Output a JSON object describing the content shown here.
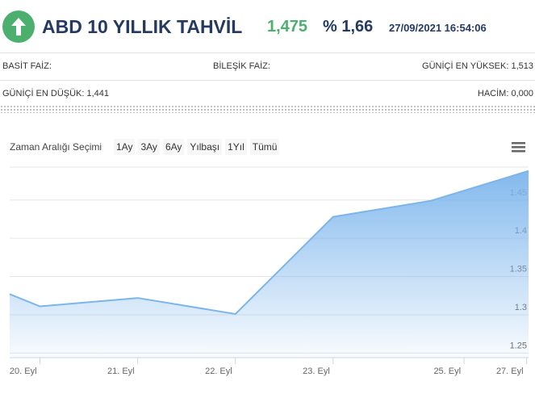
{
  "header": {
    "title": "ABD 10 YILLIK TAHVİL",
    "price": "1,475",
    "change": "% 1,66",
    "datetime": "27/09/2021 16:54:06"
  },
  "info": {
    "simple_rate": "BASİT FAİZ:",
    "compound_rate": "BİLEŞİK FAİZ:",
    "day_high": "GÜNİÇİ EN YÜKSEK: 1,513",
    "day_low": "GÜNİÇİ EN DÜŞÜK: 1,441",
    "volume": "HACİM: 0,000"
  },
  "range_selector": {
    "label": "Zaman Aralığı Seçimi",
    "buttons": [
      "1Ay",
      "3Ay",
      "6Ay",
      "Yılbaşı",
      "1Yıl",
      "Tümü"
    ]
  },
  "chart_data": {
    "type": "area",
    "color": "#7cb5ec",
    "x": [
      -0.31,
      0,
      1,
      2,
      3,
      4,
      5.0
    ],
    "values": [
      1.327,
      1.311,
      1.322,
      1.301,
      1.428,
      1.449,
      1.488
    ],
    "xlim": [
      -0.31,
      5.0
    ],
    "xticks": [
      {
        "value": 0,
        "label": "20. Eyl"
      },
      {
        "value": 1,
        "label": "21. Eyl"
      },
      {
        "value": 2,
        "label": "22. Eyl"
      },
      {
        "value": 3,
        "label": "23. Eyl"
      },
      {
        "value": 4.34,
        "label": "25. Eyl"
      },
      {
        "value": 4.98,
        "label": "27. Eyl"
      }
    ],
    "ylim": [
      1.244,
      1.493
    ],
    "yticks": [
      1.25,
      1.3,
      1.35,
      1.4,
      1.45
    ],
    "grid": true
  }
}
